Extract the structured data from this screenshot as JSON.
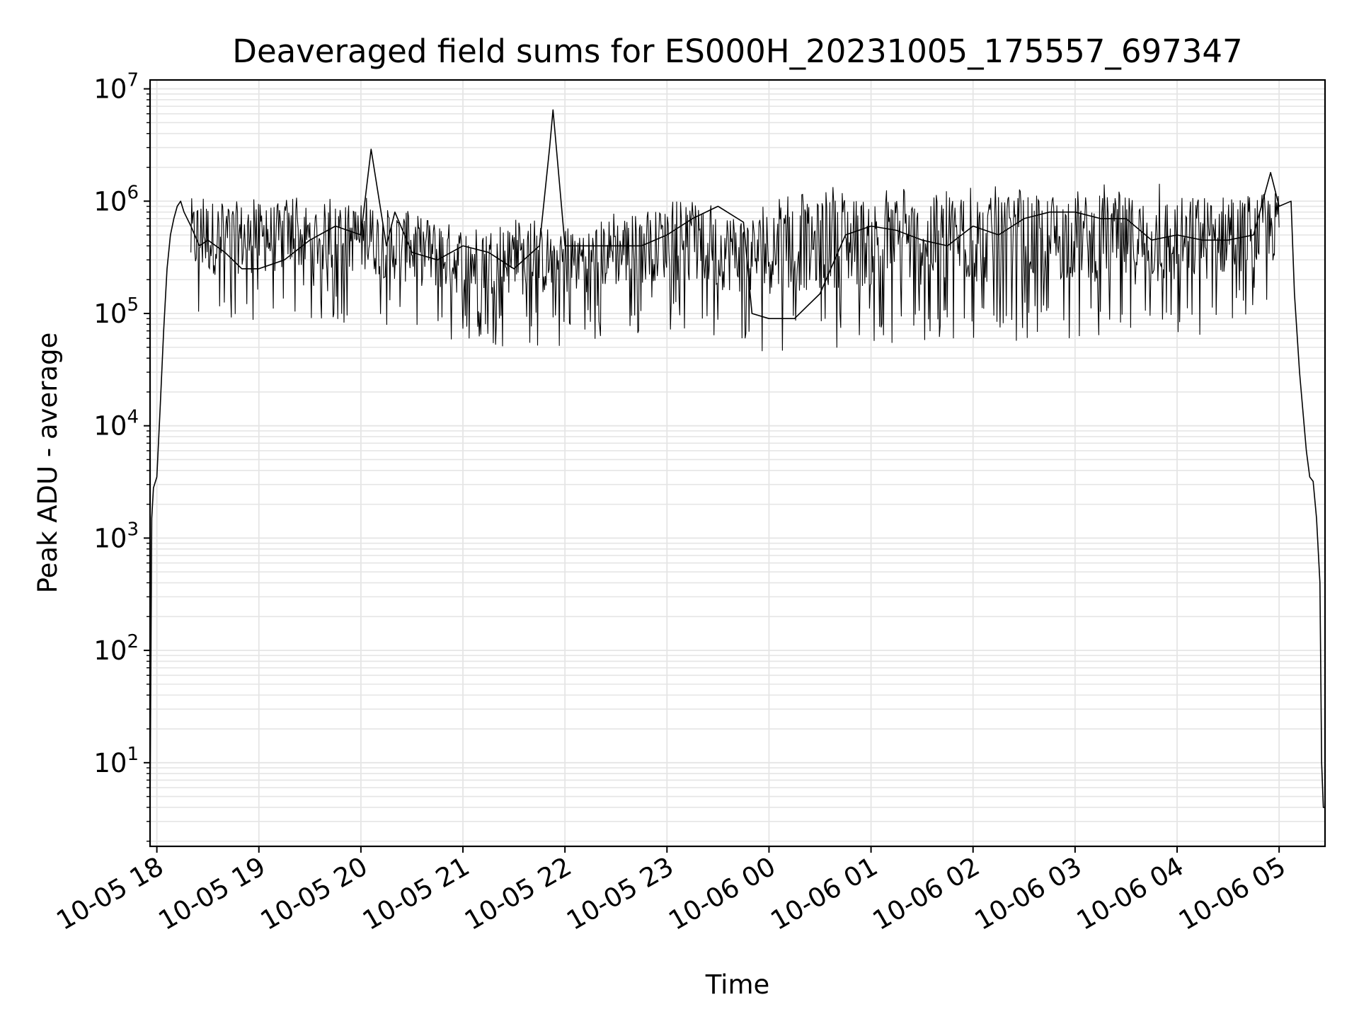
{
  "chart_data": {
    "type": "line",
    "title": "Deaveraged field sums for ES000H_20231005_175557_697347",
    "xlabel": "Time",
    "ylabel": "Peak ADU - average",
    "yscale": "log",
    "ylim": [
      1.8,
      12000000
    ],
    "xlim": [
      "2023-10-05 17:56",
      "2023-10-06 05:27"
    ],
    "grid": true,
    "line_color": "#000000",
    "grid_color": "#e5e5e5",
    "x_ticks": [
      "10-05 18",
      "10-05 19",
      "10-05 20",
      "10-05 21",
      "10-05 22",
      "10-05 23",
      "10-06 00",
      "10-06 01",
      "10-06 02",
      "10-06 03",
      "10-06 04",
      "10-06 05"
    ],
    "x_tick_times": [
      "2023-10-05 18:00",
      "2023-10-05 19:00",
      "2023-10-05 20:00",
      "2023-10-05 21:00",
      "2023-10-05 22:00",
      "2023-10-05 23:00",
      "2023-10-06 00:00",
      "2023-10-06 01:00",
      "2023-10-06 02:00",
      "2023-10-06 03:00",
      "2023-10-06 04:00",
      "2023-10-06 05:00"
    ],
    "y_ticks": [
      {
        "base": "10",
        "exp": "1",
        "value": 10
      },
      {
        "base": "10",
        "exp": "2",
        "value": 100
      },
      {
        "base": "10",
        "exp": "3",
        "value": 1000
      },
      {
        "base": "10",
        "exp": "4",
        "value": 10000
      },
      {
        "base": "10",
        "exp": "5",
        "value": 100000
      },
      {
        "base": "10",
        "exp": "6",
        "value": 1000000
      },
      {
        "base": "10",
        "exp": "7",
        "value": 10000000
      }
    ],
    "series": [
      {
        "x": [
          "2023-10-05 17:56",
          "2023-10-05 17:57",
          "2023-10-05 17:58",
          "2023-10-05 18:00",
          "2023-10-05 18:02",
          "2023-10-05 18:04",
          "2023-10-05 18:06",
          "2023-10-05 18:08",
          "2023-10-05 18:10",
          "2023-10-05 18:12",
          "2023-10-05 18:14",
          "2023-10-05 18:16",
          "2023-10-05 18:20",
          "2023-10-05 18:25",
          "2023-10-05 18:30",
          "2023-10-05 18:40",
          "2023-10-05 18:50",
          "2023-10-05 19:00",
          "2023-10-05 19:15",
          "2023-10-05 19:30",
          "2023-10-05 19:45",
          "2023-10-05 20:00",
          "2023-10-05 20:06",
          "2023-10-05 20:15",
          "2023-10-05 20:20",
          "2023-10-05 20:30",
          "2023-10-05 20:45",
          "2023-10-05 21:00",
          "2023-10-05 21:15",
          "2023-10-05 21:30",
          "2023-10-05 21:45",
          "2023-10-05 21:51",
          "2023-10-05 21:53",
          "2023-10-05 22:00",
          "2023-10-05 22:15",
          "2023-10-05 22:30",
          "2023-10-05 22:45",
          "2023-10-05 23:00",
          "2023-10-05 23:15",
          "2023-10-05 23:30",
          "2023-10-05 23:45",
          "2023-10-05 23:50",
          "2023-10-06 00:00",
          "2023-10-06 00:15",
          "2023-10-06 00:30",
          "2023-10-06 00:45",
          "2023-10-06 01:00",
          "2023-10-06 01:15",
          "2023-10-06 01:30",
          "2023-10-06 01:45",
          "2023-10-06 02:00",
          "2023-10-06 02:15",
          "2023-10-06 02:30",
          "2023-10-06 02:45",
          "2023-10-06 03:00",
          "2023-10-06 03:15",
          "2023-10-06 03:30",
          "2023-10-06 03:45",
          "2023-10-06 04:00",
          "2023-10-06 04:15",
          "2023-10-06 04:30",
          "2023-10-06 04:45",
          "2023-10-06 04:55",
          "2023-10-06 05:00",
          "2023-10-06 05:07",
          "2023-10-06 05:09",
          "2023-10-06 05:12",
          "2023-10-06 05:16",
          "2023-10-06 05:18",
          "2023-10-06 05:20",
          "2023-10-06 05:22",
          "2023-10-06 05:24",
          "2023-10-06 05:25",
          "2023-10-06 05:26",
          "2023-10-06 05:27"
        ],
        "y": [
          4,
          1500,
          2800,
          3500,
          15000,
          70000,
          250000,
          500000,
          700000,
          900000,
          1000000,
          800000,
          600000,
          400000,
          450000,
          350000,
          250000,
          250000,
          300000,
          450000,
          600000,
          500000,
          2900000,
          400000,
          800000,
          350000,
          300000,
          400000,
          350000,
          250000,
          400000,
          3000000,
          6500000,
          400000,
          400000,
          400000,
          400000,
          500000,
          700000,
          900000,
          650000,
          100000,
          90000,
          90000,
          150000,
          500000,
          600000,
          550000,
          450000,
          400000,
          600000,
          500000,
          700000,
          800000,
          800000,
          700000,
          700000,
          450000,
          500000,
          450000,
          450000,
          500000,
          1800000,
          900000,
          1000000,
          150000,
          30000,
          6000,
          3500,
          3200,
          1500,
          400,
          10,
          4,
          4
        ],
        "noise_band": {
          "x": [
            "2023-10-05 18:20",
            "2023-10-05 19:00",
            "2023-10-05 20:00",
            "2023-10-05 21:00",
            "2023-10-05 22:00",
            "2023-10-05 23:00",
            "2023-10-05 23:50",
            "2023-10-06 00:45",
            "2023-10-06 01:00",
            "2023-10-06 02:00",
            "2023-10-06 03:00",
            "2023-10-06 04:00",
            "2023-10-06 05:00"
          ],
          "upper": [
            1300000,
            1100000,
            1100000,
            700000,
            700000,
            1000000,
            1000000,
            1500000,
            1500000,
            1400000,
            1500000,
            1500000,
            1400000
          ],
          "lower": [
            70000,
            80000,
            80000,
            50000,
            50000,
            70000,
            45000,
            50000,
            50000,
            55000,
            60000,
            50000,
            100000
          ]
        }
      }
    ]
  }
}
